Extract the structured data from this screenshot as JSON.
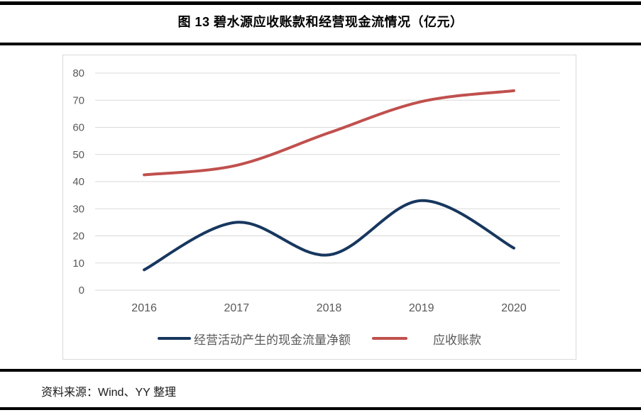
{
  "title": "图 13 碧水源应收账款和经营现金流情况（亿元）",
  "source_note": "资料来源：Wind、YY 整理",
  "chart_data": {
    "type": "line",
    "smoothed": true,
    "title": "图 13 碧水源应收账款和经营现金流情况（亿元）",
    "categories": [
      "2016",
      "2017",
      "2018",
      "2019",
      "2020"
    ],
    "series": [
      {
        "name": "经营活动产生的现金流量净额",
        "color": "#17375E",
        "values": [
          7.5,
          25,
          13,
          33,
          15.5
        ]
      },
      {
        "name": "应收账款",
        "color": "#C0504D",
        "values": [
          42.5,
          46,
          58,
          69.5,
          73.5
        ]
      }
    ],
    "ylim": [
      0,
      80
    ],
    "yticks": [
      0,
      10,
      20,
      30,
      40,
      50,
      60,
      70,
      80
    ],
    "grid": "horizontal",
    "gridline_color": "#D9D9D9",
    "axis_text_color": "#595959",
    "legend_position": "bottom",
    "unit_label": "亿元"
  }
}
